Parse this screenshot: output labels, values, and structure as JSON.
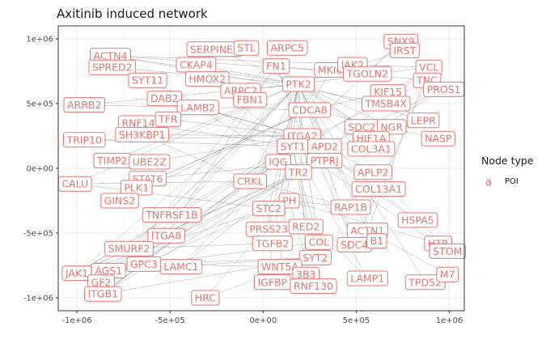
{
  "chart_data": {
    "type": "network",
    "title": "Axitinib induced network",
    "xlim": [
      -1100000,
      1080000
    ],
    "ylim": [
      -1100000,
      1100000
    ],
    "x_ticks": [
      -1000000,
      -500000,
      0,
      500000,
      1000000
    ],
    "x_tick_labels": [
      "-1e+06",
      "-5e+05",
      "0e+00",
      "5e+05",
      "1e+06"
    ],
    "y_ticks": [
      -1000000,
      -500000,
      0,
      500000,
      1000000
    ],
    "y_tick_labels": [
      "-1e+06",
      "-5e+05",
      "0e+00",
      "5e+05",
      "1e+06"
    ],
    "grid": true,
    "legend": {
      "title": "Node type",
      "key": "a",
      "entries": [
        "POI"
      ],
      "position": "right"
    },
    "colors": {
      "node": "#e8766d",
      "panel_border": "#333333",
      "grid_major": "#ebebeb",
      "grid_minor": "#f5f5f5",
      "edge": "#555555"
    },
    "nodes": [
      {
        "label": "ACTN4",
        "x": -820000,
        "y": 870000
      },
      {
        "label": "SPRED2",
        "x": -810000,
        "y": 780000
      },
      {
        "label": "SYT11",
        "x": -620000,
        "y": 680000
      },
      {
        "label": "SERPINE1",
        "x": -260000,
        "y": 920000
      },
      {
        "label": "STL",
        "x": -90000,
        "y": 930000
      },
      {
        "label": "ARPC5",
        "x": 130000,
        "y": 930000
      },
      {
        "label": "CKAP4",
        "x": -360000,
        "y": 800000
      },
      {
        "label": "FN1",
        "x": 70000,
        "y": 790000
      },
      {
        "label": "MKI6",
        "x": 360000,
        "y": 760000
      },
      {
        "label": "IAK2",
        "x": 480000,
        "y": 800000
      },
      {
        "label": "SNX9",
        "x": 740000,
        "y": 980000
      },
      {
        "label": "IRST",
        "x": 760000,
        "y": 910000
      },
      {
        "label": "VCL",
        "x": 890000,
        "y": 780000
      },
      {
        "label": "TGOLN2",
        "x": 560000,
        "y": 730000
      },
      {
        "label": "TNC",
        "x": 880000,
        "y": 680000
      },
      {
        "label": "PROS1",
        "x": 970000,
        "y": 610000
      },
      {
        "label": "HMOX2",
        "x": -300000,
        "y": 690000
      },
      {
        "label": "PTK2",
        "x": 190000,
        "y": 650000
      },
      {
        "label": "ARPC2",
        "x": -120000,
        "y": 600000
      },
      {
        "label": "KIF15",
        "x": 670000,
        "y": 590000
      },
      {
        "label": "ARRB2",
        "x": -960000,
        "y": 490000
      },
      {
        "label": "DAB2",
        "x": -530000,
        "y": 540000
      },
      {
        "label": "FBN1",
        "x": -70000,
        "y": 530000
      },
      {
        "label": "LAMB2",
        "x": -350000,
        "y": 470000
      },
      {
        "label": "CDCA8",
        "x": 250000,
        "y": 450000
      },
      {
        "label": "TMSB4X",
        "x": 660000,
        "y": 500000
      },
      {
        "label": "RNF14",
        "x": -670000,
        "y": 350000
      },
      {
        "label": "TFR",
        "x": -510000,
        "y": 380000
      },
      {
        "label": "SH3KBP1",
        "x": -650000,
        "y": 260000
      },
      {
        "label": "SDC2",
        "x": 530000,
        "y": 320000
      },
      {
        "label": "NGR",
        "x": 690000,
        "y": 320000
      },
      {
        "label": "LEPR",
        "x": 860000,
        "y": 370000
      },
      {
        "label": "ITGA2",
        "x": 210000,
        "y": 250000
      },
      {
        "label": "HIF1A",
        "x": 580000,
        "y": 230000
      },
      {
        "label": "NASP",
        "x": 940000,
        "y": 230000
      },
      {
        "label": "TRIP10",
        "x": -960000,
        "y": 220000
      },
      {
        "label": "SYT1",
        "x": 160000,
        "y": 170000
      },
      {
        "label": "APD2",
        "x": 330000,
        "y": 170000
      },
      {
        "label": "COL3A1",
        "x": 580000,
        "y": 150000
      },
      {
        "label": "TIMP2",
        "x": -810000,
        "y": 60000
      },
      {
        "label": "UBE2Z",
        "x": -610000,
        "y": 50000
      },
      {
        "label": "IQG",
        "x": 80000,
        "y": 50000
      },
      {
        "label": "PTPRJ",
        "x": 330000,
        "y": 60000
      },
      {
        "label": "TR2",
        "x": 190000,
        "y": -30000
      },
      {
        "label": "STAT6",
        "x": -620000,
        "y": -80000
      },
      {
        "label": "CRKL",
        "x": -70000,
        "y": -100000
      },
      {
        "label": "APLP2",
        "x": 590000,
        "y": -30000
      },
      {
        "label": "CALU",
        "x": -1010000,
        "y": -120000
      },
      {
        "label": "PLK1",
        "x": -680000,
        "y": -150000
      },
      {
        "label": "COL13A1",
        "x": 620000,
        "y": -160000
      },
      {
        "label": "GINS2",
        "x": -770000,
        "y": -250000
      },
      {
        "label": "PH",
        "x": 140000,
        "y": -250000
      },
      {
        "label": "STC2",
        "x": 30000,
        "y": -310000
      },
      {
        "label": "RAP1B",
        "x": 470000,
        "y": -300000
      },
      {
        "label": "TNFRSF1B",
        "x": -490000,
        "y": -360000
      },
      {
        "label": "HSPA5",
        "x": 830000,
        "y": -400000
      },
      {
        "label": "PRSS23",
        "x": 30000,
        "y": -470000
      },
      {
        "label": "RED2",
        "x": 230000,
        "y": -450000
      },
      {
        "label": "ACTN1",
        "x": 560000,
        "y": -480000
      },
      {
        "label": "ITGA8",
        "x": -520000,
        "y": -520000
      },
      {
        "label": "TGFB2",
        "x": 50000,
        "y": -580000
      },
      {
        "label": "COL",
        "x": 300000,
        "y": -570000
      },
      {
        "label": "SDC4",
        "x": 490000,
        "y": -590000
      },
      {
        "label": "B1",
        "x": 610000,
        "y": -560000
      },
      {
        "label": "SMURF2",
        "x": -720000,
        "y": -620000
      },
      {
        "label": "HTR",
        "x": 940000,
        "y": -580000
      },
      {
        "label": "STOM",
        "x": 990000,
        "y": -640000
      },
      {
        "label": "SYT2",
        "x": 280000,
        "y": -690000
      },
      {
        "label": "GPC3",
        "x": -640000,
        "y": -740000
      },
      {
        "label": "LAMC1",
        "x": -440000,
        "y": -760000
      },
      {
        "label": "WNT5A",
        "x": 90000,
        "y": -760000
      },
      {
        "label": "JAK1",
        "x": -1000000,
        "y": -810000
      },
      {
        "label": "AGS1",
        "x": -830000,
        "y": -790000
      },
      {
        "label": "GF2",
        "x": -870000,
        "y": -880000
      },
      {
        "label": "IGFBP",
        "x": 50000,
        "y": -880000
      },
      {
        "label": "3B3",
        "x": 230000,
        "y": -820000
      },
      {
        "label": "RNF130",
        "x": 270000,
        "y": -910000
      },
      {
        "label": "LAMP1",
        "x": 560000,
        "y": -850000
      },
      {
        "label": "TPD52",
        "x": 870000,
        "y": -880000
      },
      {
        "label": "M7",
        "x": 990000,
        "y": -820000
      },
      {
        "label": "ITGB1",
        "x": -860000,
        "y": -970000
      },
      {
        "label": "HRC",
        "x": -310000,
        "y": -1000000
      }
    ],
    "edges": [
      [
        "ARRB2",
        "PTK2"
      ],
      [
        "ARRB2",
        "CDCA8"
      ],
      [
        "TRIP10",
        "ITGA2"
      ],
      [
        "TRIP10",
        "SYT1"
      ],
      [
        "CALU",
        "CRKL"
      ],
      [
        "CALU",
        "STC2"
      ],
      [
        "JAK1",
        "PTK2"
      ],
      [
        "JAK1",
        "PTPRJ"
      ],
      [
        "JAK1",
        "SYT1"
      ],
      [
        "JAK1",
        "ITGA2"
      ],
      [
        "JAK1",
        "STC2"
      ],
      [
        "ITGB1",
        "CRKL"
      ],
      [
        "ITGB1",
        "PTK2"
      ],
      [
        "ITGB1",
        "ITGA2"
      ],
      [
        "ITGB1",
        "TR2"
      ],
      [
        "ITGB1",
        "SYT2"
      ],
      [
        "ITGB1",
        "FBN1"
      ],
      [
        "AGS1",
        "PTK2"
      ],
      [
        "AGS1",
        "ITGA2"
      ],
      [
        "AGS1",
        "PTPRJ"
      ],
      [
        "GF2",
        "CRKL"
      ],
      [
        "GF2",
        "STC2"
      ],
      [
        "SMURF2",
        "TGFB2"
      ],
      [
        "SMURF2",
        "PTK2"
      ],
      [
        "GPC3",
        "WNT5A"
      ],
      [
        "GPC3",
        "SYT2"
      ],
      [
        "LAMC1",
        "ITGA2"
      ],
      [
        "LAMC1",
        "TR2"
      ],
      [
        "ITGA8",
        "FN1"
      ],
      [
        "ITGA8",
        "CRKL"
      ],
      [
        "TNFRSF1B",
        "PTK2"
      ],
      [
        "GINS2",
        "CDCA8"
      ],
      [
        "PLK1",
        "CDCA8"
      ],
      [
        "STAT6",
        "PTPRJ"
      ],
      [
        "UBE2Z",
        "ITGA2"
      ],
      [
        "TIMP2",
        "PTK2"
      ],
      [
        "SH3KBP1",
        "CRKL"
      ],
      [
        "SH3KBP1",
        "ITGA2"
      ],
      [
        "RNF14",
        "SYT1"
      ],
      [
        "DAB2",
        "ITGA2"
      ],
      [
        "LAMB2",
        "ITGA2"
      ],
      [
        "LAMB2",
        "TR2"
      ],
      [
        "SYT11",
        "SYT1"
      ],
      [
        "SPRED2",
        "PTK2"
      ],
      [
        "ACTN4",
        "PTK2"
      ],
      [
        "ACTN4",
        "VCL"
      ],
      [
        "ACTN4",
        "TGOLN2"
      ],
      [
        "SERPINE1",
        "PTK2"
      ],
      [
        "CKAP4",
        "PTK2"
      ],
      [
        "HMOX2",
        "SYT1"
      ],
      [
        "FN1",
        "ITGA2"
      ],
      [
        "FN1",
        "TNC"
      ],
      [
        "ARPC5",
        "ARPC2"
      ],
      [
        "PTK2",
        "CRKL"
      ],
      [
        "PTK2",
        "ITGA2"
      ],
      [
        "PTK2",
        "VCL"
      ],
      [
        "PTK2",
        "SDC2"
      ],
      [
        "PTK2",
        "STC2"
      ],
      [
        "PTK2",
        "IQG"
      ],
      [
        "VCL",
        "TR2"
      ],
      [
        "VCL",
        "ACTN1"
      ],
      [
        "VCL",
        "CRKL"
      ],
      [
        "TNC",
        "SDC4"
      ],
      [
        "TNC",
        "SYT1"
      ],
      [
        "PROS1",
        "PTPRJ"
      ],
      [
        "PROS1",
        "APD2"
      ],
      [
        "SNX9",
        "TGOLN2"
      ],
      [
        "SNX9",
        "CRKL"
      ],
      [
        "KIF15",
        "CDCA8"
      ],
      [
        "LEPR",
        "PTK2"
      ],
      [
        "NASP",
        "CDCA8"
      ],
      [
        "HIF1A",
        "COL3A1"
      ],
      [
        "HIF1A",
        "PTK2"
      ],
      [
        "COL3A1",
        "ITGA2"
      ],
      [
        "COL13A1",
        "ITGA2"
      ],
      [
        "APLP2",
        "APD2"
      ],
      [
        "RAP1B",
        "CRKL"
      ],
      [
        "RAP1B",
        "PH"
      ],
      [
        "HSPA5",
        "ITGA2"
      ],
      [
        "HSPA5",
        "PTPRJ"
      ],
      [
        "HTR",
        "PH"
      ],
      [
        "STOM",
        "SYT1"
      ],
      [
        "STOM",
        "PTK2"
      ],
      [
        "M7",
        "ACTN1"
      ],
      [
        "TPD52",
        "PTK2"
      ],
      [
        "LAMP1",
        "SYT1"
      ],
      [
        "LAMP1",
        "PH"
      ],
      [
        "SDC4",
        "PTK2"
      ],
      [
        "SDC4",
        "FN1"
      ],
      [
        "COL",
        "ITGA2"
      ],
      [
        "COL",
        "TR2"
      ],
      [
        "RNF130",
        "PH"
      ],
      [
        "IGFBP",
        "STC2"
      ],
      [
        "WNT5A",
        "PTK2"
      ],
      [
        "PRSS23",
        "PTK2"
      ],
      [
        "TGFB2",
        "PTK2"
      ],
      [
        "HRC",
        "SYT2"
      ],
      [
        "HRC",
        "PH"
      ],
      [
        "RED2",
        "SYT1"
      ],
      [
        "STC2",
        "TR2"
      ],
      [
        "CRKL",
        "ITGA2"
      ],
      [
        "CRKL",
        "IQG"
      ],
      [
        "SYT2",
        "SYT1"
      ],
      [
        "SYT1",
        "PTPRJ"
      ],
      [
        "TMSB4X",
        "ACTN4"
      ],
      [
        "FBN1",
        "FN1"
      ],
      [
        "CDCA8",
        "PLK1"
      ],
      [
        "NGR",
        "PTK2"
      ],
      [
        "SDC2",
        "FN1"
      ],
      [
        "B1",
        "PTK2"
      ],
      [
        "ACTN1",
        "PTK2"
      ],
      [
        "3B3",
        "PTK2"
      ],
      [
        "TFR",
        "ITGA2"
      ],
      [
        "IAK2",
        "PTK2"
      ],
      [
        "MKI6",
        "CDCA8"
      ],
      [
        "IRST",
        "PTK2"
      ],
      [
        "STL",
        "PTK2"
      ],
      [
        "ARPC2",
        "PTK2"
      ],
      [
        "ITGA2",
        "PTPRJ"
      ],
      [
        "APD2",
        "PTK2"
      ],
      [
        "JAK1",
        "TR2"
      ],
      [
        "ITGB1",
        "IQG"
      ],
      [
        "GF2",
        "TR2"
      ],
      [
        "AGS1",
        "SYT2"
      ],
      [
        "CALU",
        "PTK2"
      ],
      [
        "JAK1",
        "COL"
      ]
    ]
  }
}
